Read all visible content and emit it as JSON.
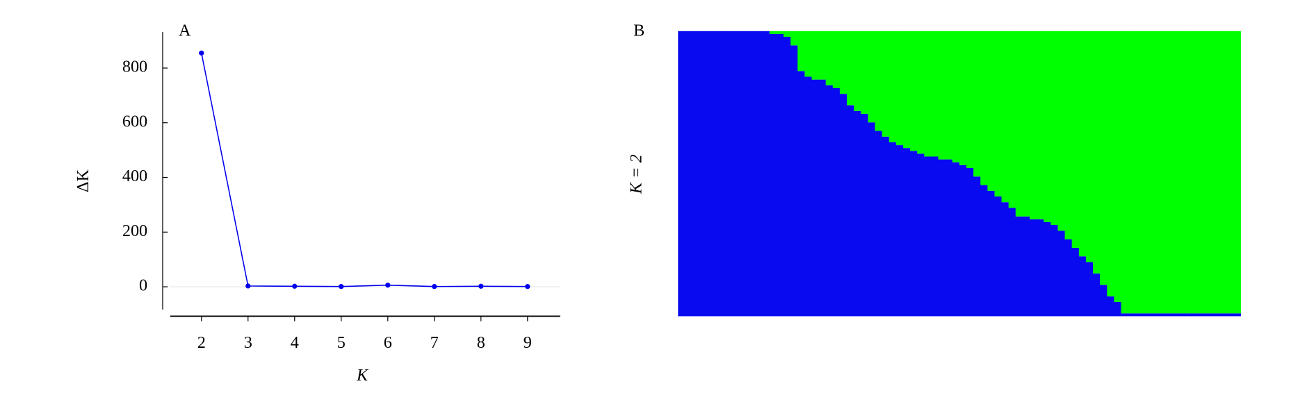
{
  "chart_data": [
    {
      "type": "line",
      "panel_label": "A",
      "xlabel": "K",
      "ylabel": "ΔK",
      "x": [
        2,
        3,
        4,
        5,
        6,
        7,
        8,
        9
      ],
      "series": [
        {
          "color": "#0000ee",
          "values": [
            855,
            3,
            2,
            1,
            6,
            1,
            2,
            1
          ]
        }
      ],
      "xlim": [
        1.33,
        9.7
      ],
      "xticks": [
        2,
        3,
        4,
        5,
        6,
        7,
        8,
        9
      ],
      "ylim": [
        -83,
        932
      ],
      "yticks": [
        0,
        200,
        400,
        600,
        800
      ],
      "zero_line": true
    },
    {
      "type": "stacked_bar",
      "panel_label": "B",
      "ylabel": "K = 2",
      "ylim": [
        0,
        1
      ],
      "series": [
        {
          "color": "#0a0af0",
          "values": [
            1,
            1,
            1,
            1,
            1,
            1,
            1,
            1,
            1,
            1,
            1,
            1,
            1,
            0.99,
            0.99,
            0.98,
            0.95,
            0.86,
            0.84,
            0.83,
            0.83,
            0.81,
            0.8,
            0.78,
            0.74,
            0.72,
            0.71,
            0.68,
            0.65,
            0.63,
            0.61,
            0.6,
            0.59,
            0.58,
            0.57,
            0.56,
            0.56,
            0.55,
            0.55,
            0.54,
            0.53,
            0.52,
            0.49,
            0.46,
            0.44,
            0.42,
            0.4,
            0.38,
            0.35,
            0.35,
            0.34,
            0.34,
            0.33,
            0.32,
            0.3,
            0.27,
            0.24,
            0.21,
            0.19,
            0.15,
            0.11,
            0.07,
            0.05,
            0.01,
            0.01,
            0.01,
            0.01,
            0.01,
            0.01,
            0.01,
            0.01,
            0.01,
            0.01,
            0.01,
            0.01,
            0.01,
            0.01,
            0.01,
            0.01,
            0.01
          ]
        },
        {
          "color": "#00ff00",
          "values": [
            0,
            0,
            0,
            0,
            0,
            0,
            0,
            0,
            0,
            0,
            0,
            0,
            0,
            0.01,
            0.01,
            0.02,
            0.05,
            0.14,
            0.16,
            0.17,
            0.17,
            0.19,
            0.2,
            0.22,
            0.26,
            0.28,
            0.29,
            0.32,
            0.35,
            0.37,
            0.39,
            0.4,
            0.41,
            0.42,
            0.43,
            0.44,
            0.44,
            0.45,
            0.45,
            0.46,
            0.47,
            0.48,
            0.51,
            0.54,
            0.56,
            0.58,
            0.6,
            0.62,
            0.65,
            0.65,
            0.66,
            0.66,
            0.67,
            0.68,
            0.7,
            0.73,
            0.76,
            0.79,
            0.81,
            0.85,
            0.89,
            0.93,
            0.95,
            0.99,
            0.99,
            0.99,
            0.99,
            0.99,
            0.99,
            0.99,
            0.99,
            0.99,
            0.99,
            0.99,
            0.99,
            0.99,
            0.99,
            0.99,
            0.99,
            0.99
          ]
        }
      ]
    }
  ]
}
